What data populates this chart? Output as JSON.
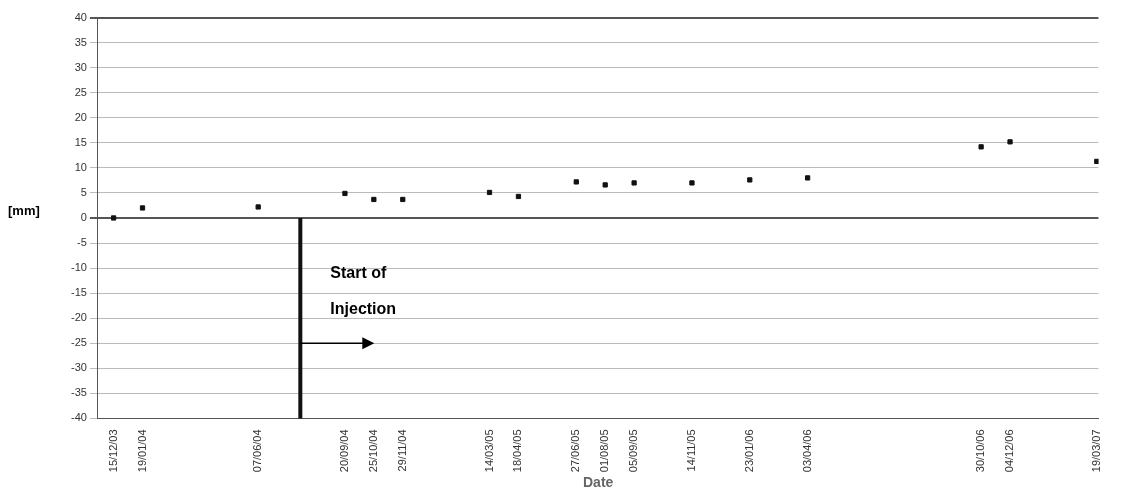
{
  "chart_data": {
    "type": "scatter",
    "xlabel": "Date",
    "ylabel": "[mm]",
    "x": [
      "2003-12-15",
      "2004-01-19",
      "2004-06-07",
      "2004-09-20",
      "2004-10-25",
      "2004-11-29",
      "2005-03-14",
      "2005-04-18",
      "2005-06-27",
      "2005-08-01",
      "2005-09-05",
      "2005-11-14",
      "2006-01-23",
      "2006-04-03",
      "2006-10-30",
      "2006-12-04",
      "2007-03-19"
    ],
    "series": [
      {
        "color": "#111111",
        "values": [
          0,
          2,
          2.2,
          4.9,
          3.7,
          3.7,
          5.1,
          4.3,
          7.2,
          6.6,
          7,
          7,
          7.6,
          8,
          14.2,
          15.2,
          11.3
        ]
      }
    ],
    "xlim": [
      "2003-11-26",
      "2007-03-21"
    ],
    "xticks": [
      {
        "value": "2003-12-15",
        "label": "15/12/03"
      },
      {
        "value": "2004-01-19",
        "label": "19/01/04"
      },
      {
        "value": "2004-06-07",
        "label": "07/06/04"
      },
      {
        "value": "2004-09-20",
        "label": "20/09/04"
      },
      {
        "value": "2004-10-25",
        "label": "25/10/04"
      },
      {
        "value": "2004-11-29",
        "label": "29/11/04"
      },
      {
        "value": "2005-03-14",
        "label": "14/03/05"
      },
      {
        "value": "2005-04-18",
        "label": "18/04/05"
      },
      {
        "value": "2005-06-27",
        "label": "27/06/05"
      },
      {
        "value": "2005-08-01",
        "label": "01/08/05"
      },
      {
        "value": "2005-09-05",
        "label": "05/09/05"
      },
      {
        "value": "2005-11-14",
        "label": "14/11/05"
      },
      {
        "value": "2006-01-23",
        "label": "23/01/06"
      },
      {
        "value": "2006-04-03",
        "label": "03/04/06"
      },
      {
        "value": "2006-10-30",
        "label": "30/10/06"
      },
      {
        "value": "2006-12-04",
        "label": "04/12/06"
      },
      {
        "value": "2007-03-19",
        "label": "19/03/07"
      }
    ],
    "ylim": [
      -40,
      40
    ],
    "yticks": [
      -40,
      -35,
      -30,
      -25,
      -20,
      -15,
      -10,
      -5,
      0,
      5,
      10,
      15,
      20,
      25,
      30,
      35,
      40
    ],
    "grid": "y",
    "marker": "square",
    "ref_lines": [
      {
        "axis": "x",
        "value": "2004-07-28",
        "label": "Start of Injection",
        "color": "#111111"
      }
    ]
  }
}
